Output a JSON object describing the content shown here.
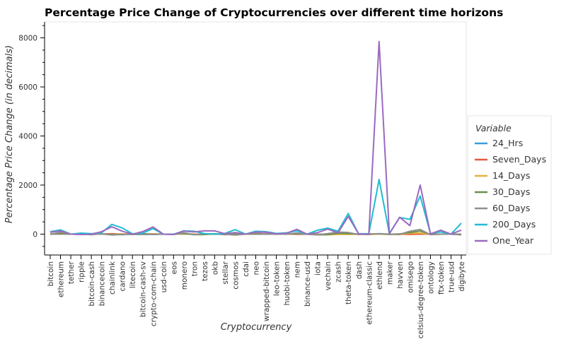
{
  "chart_data": {
    "type": "line",
    "title": "Percentage Price Change of Cryptocurrencies over different time horizons",
    "xlabel": "Cryptocurrency",
    "ylabel": "Percentage Price Change (in decimals)",
    "ylim": [
      -850,
      8650
    ],
    "yticks": [
      0,
      2000,
      4000,
      6000,
      8000
    ],
    "grid": false,
    "legend_title": "Variable",
    "legend_position": "right",
    "categories": [
      "bitcoin",
      "ethereum",
      "tether",
      "ripple",
      "bitcoin-cash",
      "binancecoin",
      "chainlink",
      "cardano",
      "litecoin",
      "bitcoin-cash-sv",
      "crypto-com-chain",
      "usd-coin",
      "eos",
      "monero",
      "tron",
      "tezos",
      "okb",
      "stellar",
      "cosmos",
      "cdai",
      "neo",
      "wrapped-bitcoin",
      "leo-token",
      "huobi-token",
      "nem",
      "binance-usd",
      "iota",
      "vechain",
      "zcash",
      "theta-token",
      "dash",
      "ethereum-classic",
      "ethlend",
      "maker",
      "havven",
      "omisego",
      "celsius-degree-token",
      "ontology",
      "ftx-token",
      "true-usd",
      "digibyte"
    ],
    "series": [
      {
        "name": "24_Hrs",
        "color": "#3a9bdc",
        "values": [
          1,
          7,
          0,
          -1,
          2,
          2,
          -1,
          1,
          1,
          0,
          0,
          0,
          0,
          3,
          0,
          -1,
          2,
          0,
          0,
          0,
          0,
          1,
          -1,
          0,
          1,
          0,
          0,
          1,
          -1,
          -2,
          2,
          -2,
          2,
          -1,
          -1,
          1,
          2,
          -2,
          1,
          0,
          -1
        ]
      },
      {
        "name": "Seven_Days",
        "color": "#e4573e",
        "values": [
          8,
          12,
          0,
          -2,
          -1,
          4,
          16,
          4,
          -3,
          -2,
          9,
          0,
          -1,
          14,
          -6,
          6,
          5,
          5,
          5,
          0,
          8,
          8,
          -3,
          5,
          -3,
          0,
          -9,
          -10,
          19,
          5,
          3,
          -11,
          7,
          -9,
          -8,
          -13,
          4,
          -5,
          -2,
          0,
          -3
        ]
      },
      {
        "name": "14_Days",
        "color": "#e6b23e",
        "values": [
          7,
          25,
          0,
          -4,
          -2,
          -2,
          -12,
          10,
          -7,
          -13,
          -1,
          0,
          -9,
          10,
          3,
          -7,
          -3,
          -3,
          -5,
          0,
          19,
          8,
          -2,
          -2,
          20,
          0,
          -13,
          -27,
          -10,
          -13,
          -3,
          -8,
          3,
          -8,
          -20,
          31,
          46,
          -17,
          -3,
          0,
          -21
        ]
      },
      {
        "name": "30_Days",
        "color": "#6b8e4e",
        "values": [
          3,
          31,
          0,
          -4,
          14,
          8,
          -17,
          -21,
          11,
          21,
          -10,
          0,
          2,
          28,
          -23,
          -19,
          17,
          -21,
          -3,
          0,
          24,
          3,
          7,
          9,
          17,
          0,
          -30,
          -18,
          34,
          25,
          -1,
          9,
          9,
          -7,
          10,
          63,
          127,
          -9,
          2,
          -1,
          -11
        ]
      },
      {
        "name": "60_Days",
        "color": "#8f8f8f",
        "values": [
          -11,
          79,
          0,
          7,
          -23,
          13,
          -35,
          -9,
          -13,
          -17,
          -10,
          0,
          -15,
          57,
          -17,
          10,
          1,
          -3,
          -37,
          -1,
          48,
          -5,
          8,
          -6,
          50,
          0,
          -25,
          21,
          84,
          66,
          -14,
          1,
          20,
          1,
          -11,
          119,
          190,
          -22,
          -1,
          -1,
          -30
        ]
      },
      {
        "name": "200_Days",
        "color": "#1fbcd3",
        "values": [
          101,
          174,
          0,
          44,
          19,
          58,
          397,
          253,
          14,
          43,
          227,
          0,
          -6,
          136,
          117,
          25,
          -2,
          30,
          183,
          0,
          118,
          101,
          29,
          54,
          134,
          0,
          161,
          244,
          119,
          842,
          17,
          16,
          2229,
          20,
          680,
          602,
          1554,
          23,
          93,
          0,
          447
        ]
      },
      {
        "name": "One_Year",
        "color": "#9b6ac0",
        "values": [
          76,
          131,
          0,
          -14,
          -5,
          102,
          299,
          120,
          -3,
          104,
          293,
          0,
          -12,
          126,
          88,
          137,
          133,
          19,
          65,
          0,
          84,
          75,
          10,
          36,
          197,
          0,
          62,
          205,
          54,
          722,
          16,
          -13,
          7852,
          17,
          688,
          347,
          2001,
          10,
          162,
          0,
          163
        ]
      }
    ]
  }
}
